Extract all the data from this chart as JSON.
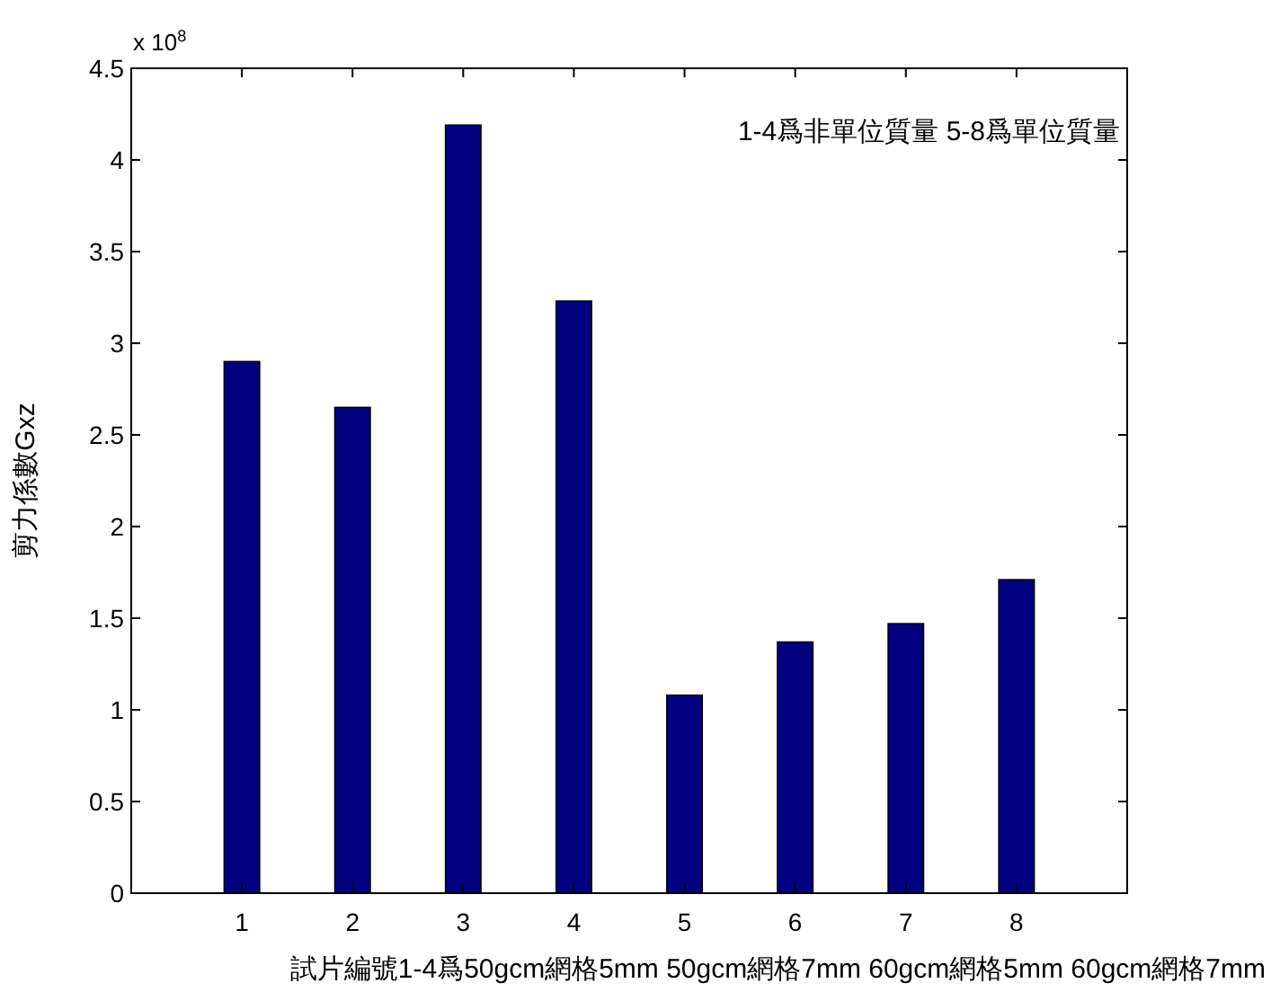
{
  "chart_data": {
    "type": "bar",
    "xlabel": "試片編號1-4爲50gcm網格5mm 50gcm網格7mm 60gcm網格5mm 60gcm網格7mm",
    "ylabel": "剪力係數Gxz",
    "annotations": [
      "x 10$^{8}$",
      "1-4爲非單位質量  5-8爲單位質量"
    ],
    "categories": [
      "1",
      "2",
      "3",
      "4",
      "5",
      "6",
      "7",
      "8"
    ],
    "values": [
      2.9,
      2.65,
      4.19,
      3.23,
      1.08,
      1.37,
      1.47,
      1.71
    ],
    "color": "#000080",
    "ylim": [
      0,
      4.5
    ],
    "yticks": [
      0,
      0.5,
      1,
      1.5,
      2,
      2.5,
      3,
      3.5,
      4,
      4.5
    ],
    "grid": false
  }
}
